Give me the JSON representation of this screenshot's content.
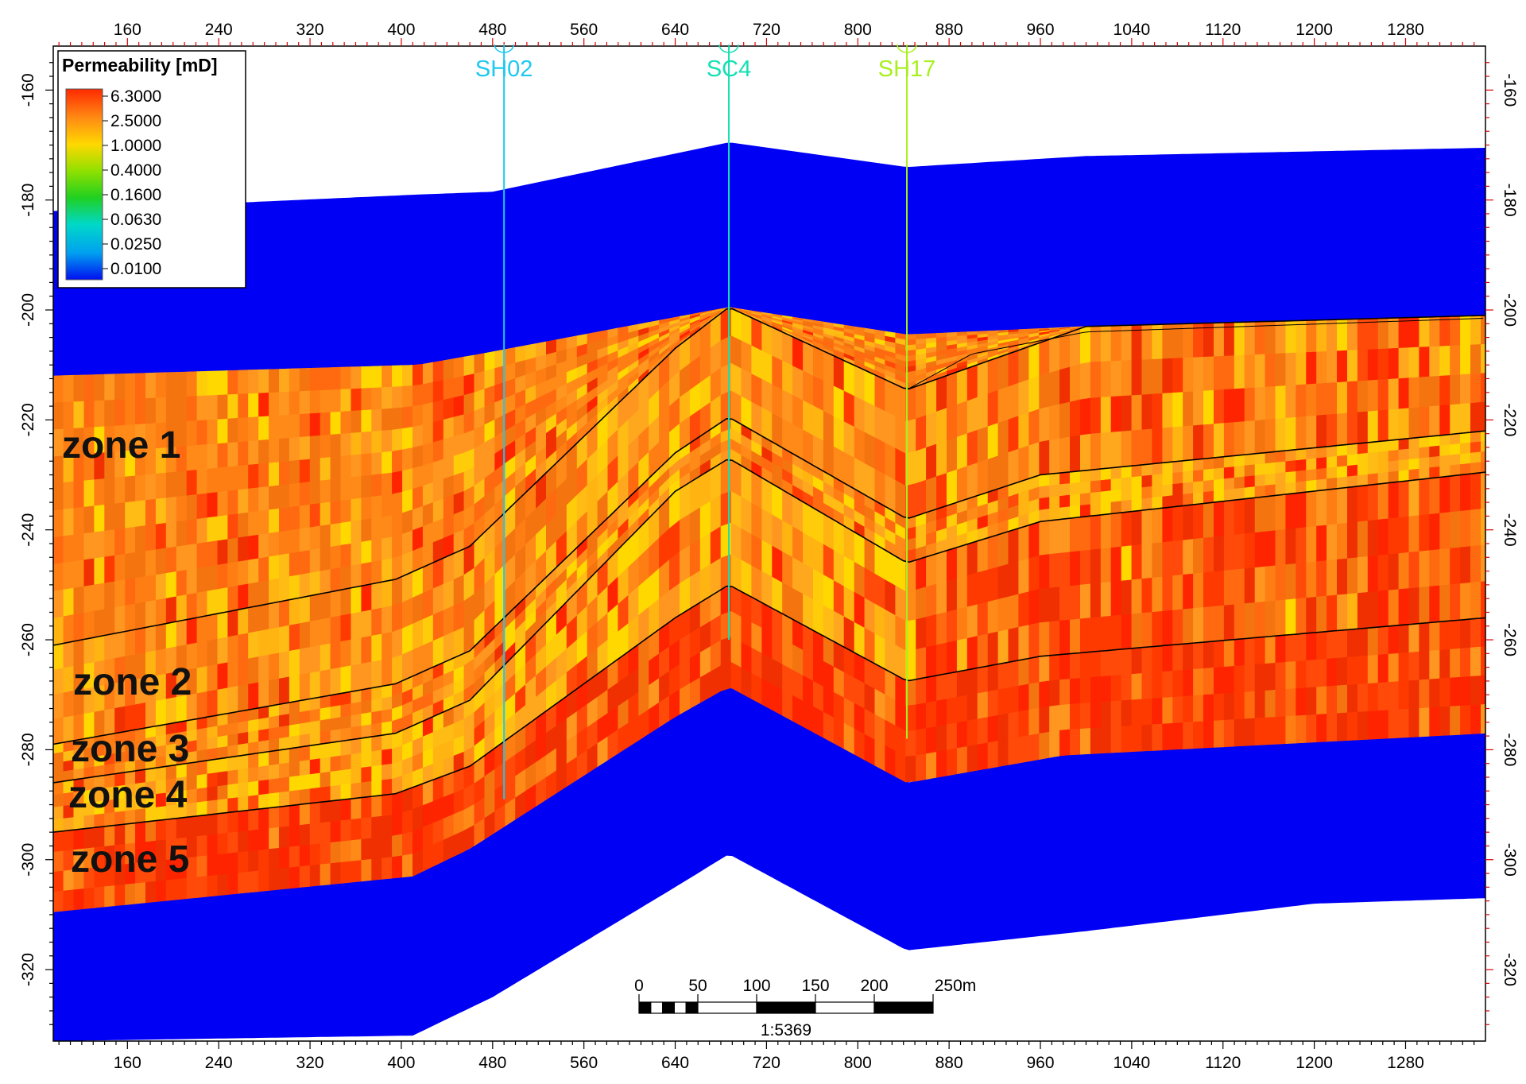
{
  "legend": {
    "title": "Permeability [mD]",
    "labels": [
      "6.3000",
      "2.5000",
      "1.0000",
      "0.4000",
      "0.1600",
      "0.0630",
      "0.0250",
      "0.0100"
    ]
  },
  "axes": {
    "x_ticks": [
      160,
      240,
      320,
      400,
      480,
      560,
      640,
      720,
      800,
      880,
      960,
      1040,
      1120,
      1200,
      1280
    ],
    "y_ticks": [
      -160,
      -180,
      -200,
      -220,
      -240,
      -260,
      -280,
      -300,
      -320
    ],
    "x_range": [
      95,
      1350
    ],
    "y_range": [
      -152,
      -333
    ]
  },
  "wells": [
    {
      "name": "SH02",
      "x": 490,
      "top": -152,
      "bottom": -289,
      "color": "#1ec8f0"
    },
    {
      "name": "SC4",
      "x": 687,
      "top": -152,
      "bottom": -260,
      "color": "#14e0b4"
    },
    {
      "name": "SH17",
      "x": 843,
      "top": -152,
      "bottom": -278,
      "color": "#a8f01e"
    }
  ],
  "zones": [
    "zone 1",
    "zone 2",
    "zone 3",
    "zone 4",
    "zone 5"
  ],
  "scale_bar": {
    "labels": [
      "0",
      "50",
      "100",
      "150",
      "200",
      "250m"
    ],
    "ratio": "1:5369"
  },
  "colors": {
    "shale": "#0000f5",
    "high_perm": "#ff2a00",
    "mid_perm": "#ff8a14",
    "low_perm": "#ffd800",
    "frame_red": "#e00000"
  }
}
